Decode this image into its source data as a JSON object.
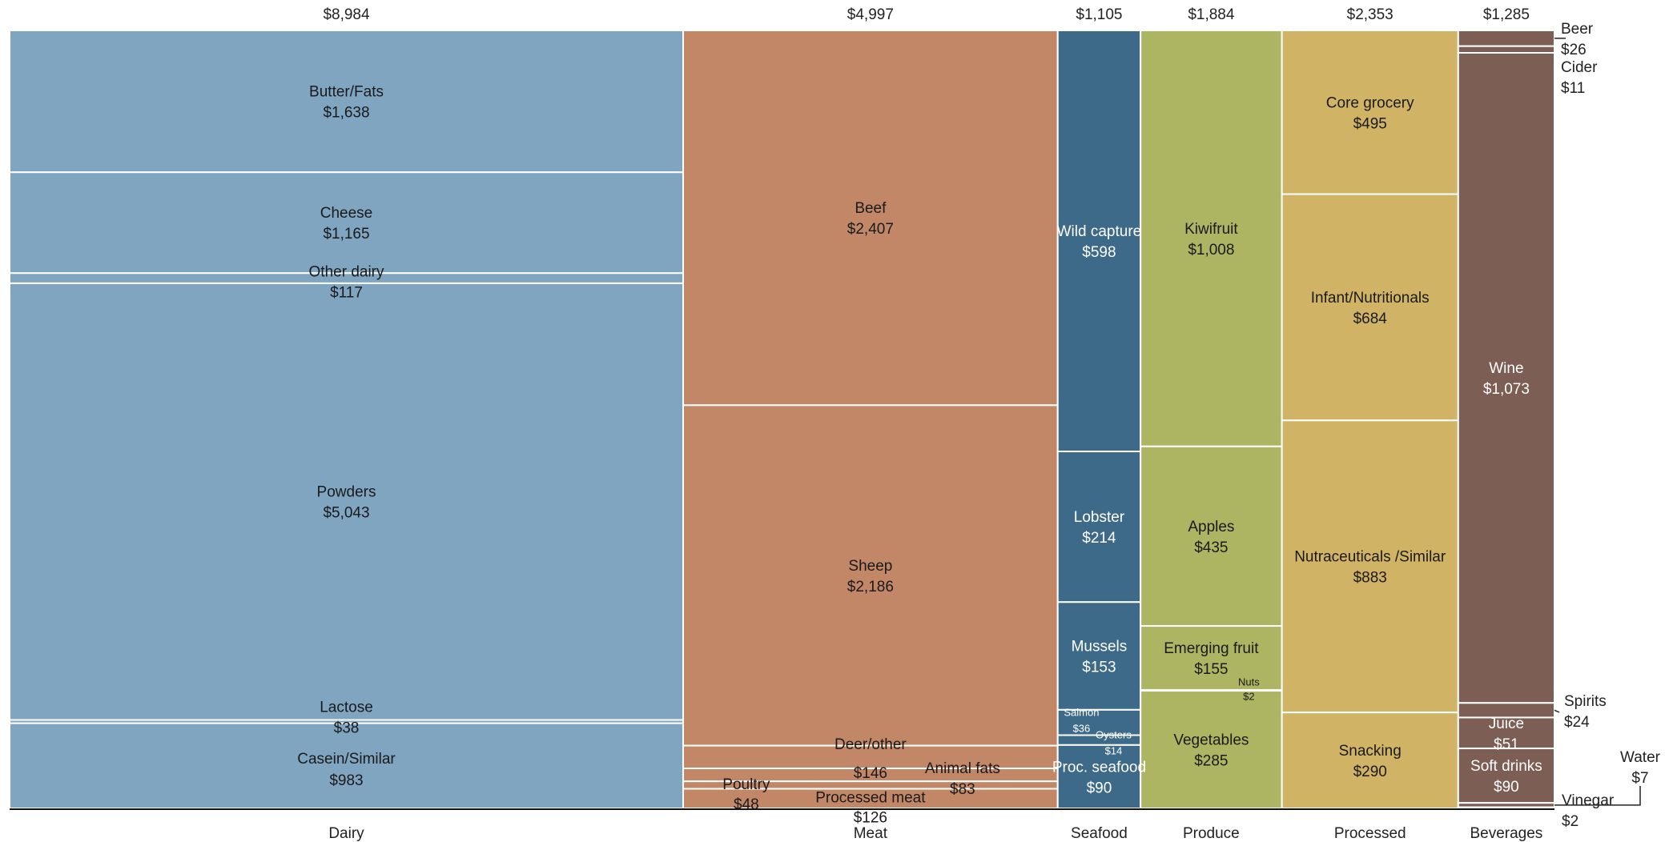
{
  "chart_data": {
    "type": "marimekko",
    "categories": [
      {
        "name": "Dairy",
        "total": "$8,984",
        "color": "#7fa5c0",
        "text_color": "#1a1a1a",
        "segments": [
          {
            "name": "Butter/Fats",
            "value": 1638,
            "label": "$1,638"
          },
          {
            "name": "Cheese",
            "value": 1165,
            "label": "$1,165"
          },
          {
            "name": "Other dairy",
            "value": 117,
            "label": "$117"
          },
          {
            "name": "Powders",
            "value": 5043,
            "label": "$5,043"
          },
          {
            "name": "Lactose",
            "value": 38,
            "label": "$38"
          },
          {
            "name": "Casein/Similar",
            "value": 983,
            "label": "$983"
          }
        ]
      },
      {
        "name": "Meat",
        "total": "$4,997",
        "color": "#c28767",
        "text_color": "#1a1a1a",
        "segments": [
          {
            "name": "Beef",
            "value": 2407,
            "label": "$2,407"
          },
          {
            "name": "Sheep",
            "value": 2186,
            "label": "$2,186"
          },
          {
            "name": "Deer/other",
            "value": 146,
            "label": "$146"
          },
          {
            "name": "Animal fats",
            "value": 83,
            "label": "$83"
          },
          {
            "name": "Poultry",
            "value": 48,
            "label": "$48"
          },
          {
            "name": "Processed meat",
            "value": 126,
            "label": "$126"
          }
        ]
      },
      {
        "name": "Seafood",
        "total": "$1,105",
        "color": "#3d6a89",
        "text_color": "#ffffff",
        "segments": [
          {
            "name": "Wild capture",
            "value": 598,
            "label": "$598"
          },
          {
            "name": "Lobster",
            "value": 214,
            "label": "$214"
          },
          {
            "name": "Mussels",
            "value": 153,
            "label": "$153"
          },
          {
            "name": "Salmon",
            "value": 36,
            "label": "$36"
          },
          {
            "name": "Oysters",
            "value": 14,
            "label": "$14"
          },
          {
            "name": "Proc. seafood",
            "value": 90,
            "label": "$90"
          }
        ]
      },
      {
        "name": "Produce",
        "total": "$1,884",
        "color": "#adb563",
        "text_color": "#1a1a1a",
        "segments": [
          {
            "name": "Kiwifruit",
            "value": 1008,
            "label": "$1,008"
          },
          {
            "name": "Apples",
            "value": 435,
            "label": "$435"
          },
          {
            "name": "Emerging fruit",
            "value": 155,
            "label": "$155"
          },
          {
            "name": "Nuts",
            "value": 2,
            "label": "$2"
          },
          {
            "name": "Vegetables",
            "value": 285,
            "label": "$285"
          }
        ]
      },
      {
        "name": "Processed",
        "total": "$2,353",
        "color": "#d0b364",
        "text_color": "#1a1a1a",
        "segments": [
          {
            "name": "Core grocery",
            "value": 495,
            "label": "$495"
          },
          {
            "name": "Infant/Nutritionals",
            "value": 684,
            "label": "$684"
          },
          {
            "name": "Nutraceuticals /Similar",
            "value": 883,
            "label": "$883"
          },
          {
            "name": "Snacking",
            "value": 290,
            "label": "$290"
          }
        ]
      },
      {
        "name": "Beverages",
        "total": "$1,285",
        "color": "#7d5e54",
        "text_color": "#ffffff",
        "segments": [
          {
            "name": "Beer",
            "value": 26,
            "label": "$26"
          },
          {
            "name": "Cider",
            "value": 11,
            "label": "$11"
          },
          {
            "name": "Wine",
            "value": 1073,
            "label": "$1,073"
          },
          {
            "name": "Spirits",
            "value": 24,
            "label": "$24"
          },
          {
            "name": "Juice",
            "value": 51,
            "label": "$51"
          },
          {
            "name": "Soft drinks",
            "value": 90,
            "label": "$90"
          },
          {
            "name": "Water",
            "value": 7,
            "label": "$7"
          },
          {
            "name": "Vinegar",
            "value": 2,
            "label": "$2"
          }
        ]
      }
    ]
  }
}
